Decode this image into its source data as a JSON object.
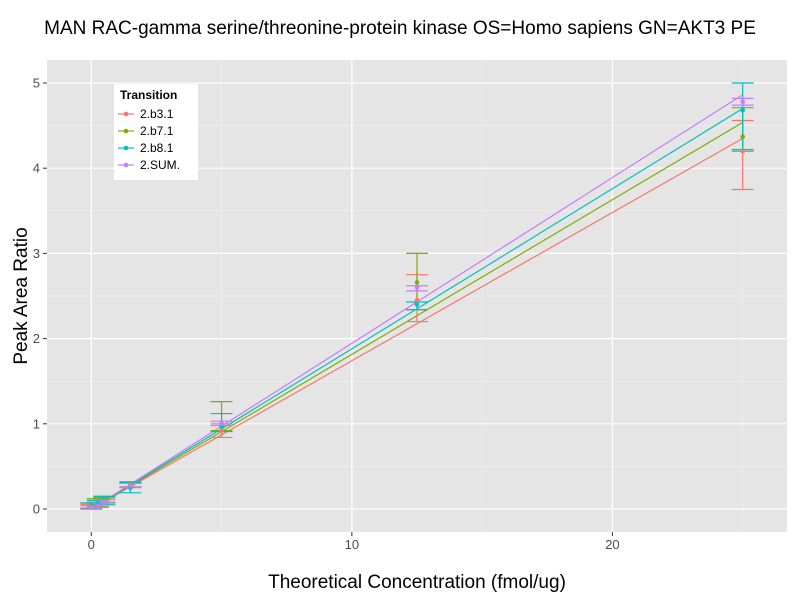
{
  "chart_data": {
    "type": "line",
    "title": "MAN RAC-gamma serine/threonine-protein kinase OS=Homo sapiens GN=AKT3 PE",
    "xlabel": "Theoretical Concentration (fmol/ug)",
    "ylabel": "Peak Area Ratio",
    "xlim": [
      -1.7,
      26.7
    ],
    "ylim": [
      -0.27,
      5.27
    ],
    "x_ticks": [
      0,
      10,
      20
    ],
    "y_ticks": [
      0,
      1,
      2,
      3,
      4,
      5
    ],
    "grid": true,
    "legend": {
      "title": "Transition",
      "position": "top-left"
    },
    "series": [
      {
        "name": "2.b3.1",
        "color": "#F8766D",
        "fit": [
          0.0,
          0.174
        ],
        "points": [
          {
            "x": 0,
            "y": 0.02,
            "ymin": 0.0,
            "ymax": 0.05
          },
          {
            "x": 0.25,
            "y": 0.05,
            "ymin": 0.02,
            "ymax": 0.08
          },
          {
            "x": 0.5,
            "y": 0.1,
            "ymin": 0.07,
            "ymax": 0.13
          },
          {
            "x": 1.5,
            "y": 0.28,
            "ymin": 0.25,
            "ymax": 0.31
          },
          {
            "x": 5,
            "y": 0.92,
            "ymin": 0.84,
            "ymax": 1.0
          },
          {
            "x": 12.5,
            "y": 2.45,
            "ymin": 2.2,
            "ymax": 2.75
          },
          {
            "x": 25,
            "y": 4.2,
            "ymin": 3.75,
            "ymax": 4.56
          }
        ]
      },
      {
        "name": "2.b7.1",
        "color": "#7CAE00",
        "fit": [
          0.0,
          0.1815
        ],
        "points": [
          {
            "x": 0,
            "y": 0.04,
            "ymin": 0.01,
            "ymax": 0.07
          },
          {
            "x": 0.25,
            "y": 0.07,
            "ymin": 0.03,
            "ymax": 0.12
          },
          {
            "x": 0.5,
            "y": 0.11,
            "ymin": 0.08,
            "ymax": 0.14
          },
          {
            "x": 1.5,
            "y": 0.29,
            "ymin": 0.26,
            "ymax": 0.32
          },
          {
            "x": 5,
            "y": 1.0,
            "ymin": 0.92,
            "ymax": 1.26
          },
          {
            "x": 12.5,
            "y": 2.66,
            "ymin": 2.34,
            "ymax": 3.0
          },
          {
            "x": 25,
            "y": 4.37,
            "ymin": 4.22,
            "ymax": 4.71
          }
        ]
      },
      {
        "name": "2.b8.1",
        "color": "#00BFC4",
        "fit": [
          0.0,
          0.188
        ],
        "points": [
          {
            "x": 0,
            "y": 0.03,
            "ymin": 0.0,
            "ymax": 0.07
          },
          {
            "x": 0.25,
            "y": 0.06,
            "ymin": 0.02,
            "ymax": 0.1
          },
          {
            "x": 0.5,
            "y": 0.1,
            "ymin": 0.05,
            "ymax": 0.15
          },
          {
            "x": 1.5,
            "y": 0.25,
            "ymin": 0.19,
            "ymax": 0.31
          },
          {
            "x": 5,
            "y": 0.97,
            "ymin": 0.91,
            "ymax": 1.12
          },
          {
            "x": 12.5,
            "y": 2.4,
            "ymin": 2.34,
            "ymax": 2.43
          },
          {
            "x": 25,
            "y": 4.68,
            "ymin": 4.2,
            "ymax": 5.0
          }
        ]
      },
      {
        "name": "2.SUM.",
        "color": "#C77CFF",
        "fit": [
          0.0,
          0.1945
        ],
        "points": [
          {
            "x": 0,
            "y": 0.02,
            "ymin": 0.0,
            "ymax": 0.04
          },
          {
            "x": 0.25,
            "y": 0.04,
            "ymin": 0.02,
            "ymax": 0.06
          },
          {
            "x": 0.5,
            "y": 0.09,
            "ymin": 0.07,
            "ymax": 0.11
          },
          {
            "x": 1.5,
            "y": 0.28,
            "ymin": 0.26,
            "ymax": 0.3
          },
          {
            "x": 5,
            "y": 1.0,
            "ymin": 0.98,
            "ymax": 1.03
          },
          {
            "x": 12.5,
            "y": 2.6,
            "ymin": 2.56,
            "ymax": 2.62
          },
          {
            "x": 25,
            "y": 4.78,
            "ymin": 4.74,
            "ymax": 4.82
          }
        ]
      }
    ]
  }
}
